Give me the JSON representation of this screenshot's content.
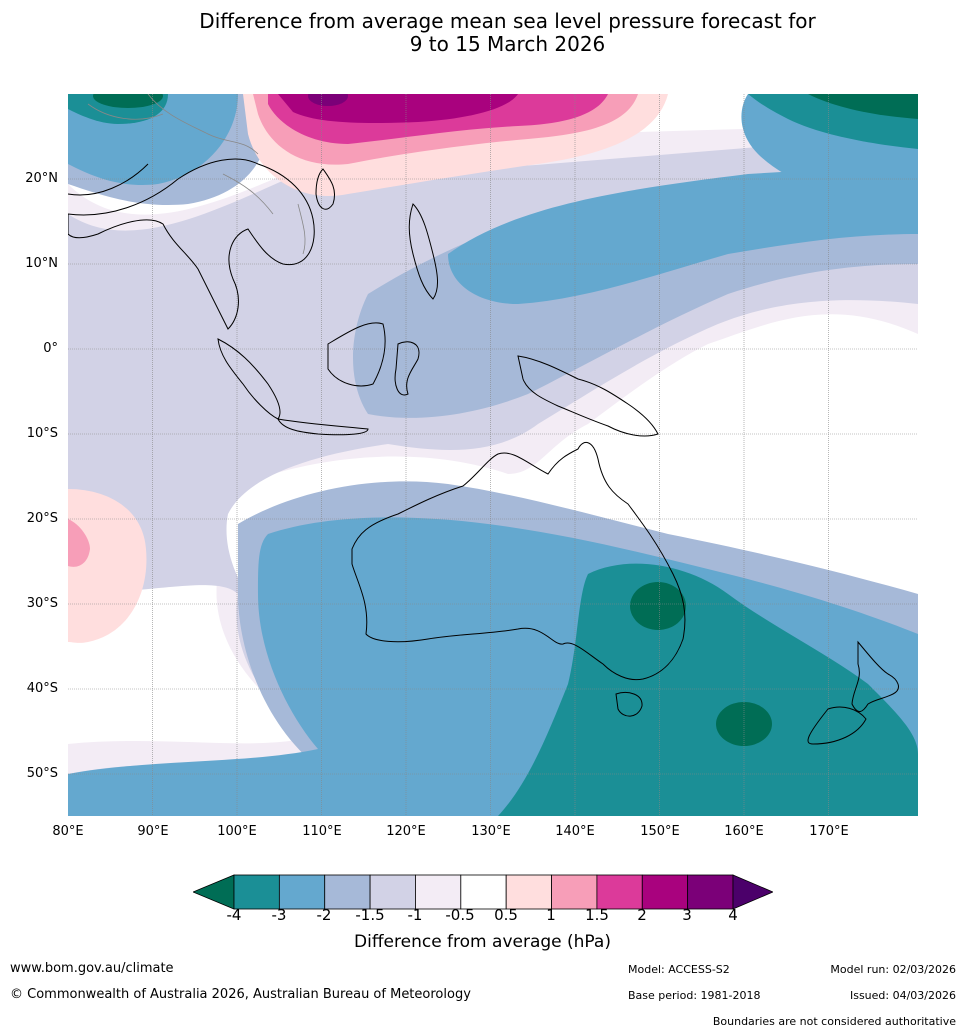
{
  "title_line1": "Difference from average mean sea level pressure forecast for",
  "title_line2": "9 to 15 March 2026",
  "lat_labels": [
    "20°N",
    "10°N",
    "0°",
    "10°S",
    "20°S",
    "30°S",
    "40°S",
    "50°S"
  ],
  "lon_labels": [
    "80°E",
    "90°E",
    "100°E",
    "110°E",
    "120°E",
    "130°E",
    "140°E",
    "150°E",
    "160°E",
    "170°E"
  ],
  "colorbar": {
    "ticks": [
      "-4",
      "-3",
      "-2",
      "-1.5",
      "-1",
      "-0.5",
      "0.5",
      "1",
      "1.5",
      "2",
      "3",
      "4"
    ],
    "colors": [
      "#006d55",
      "#1b8f96",
      "#64a8cf",
      "#a6b9d8",
      "#d2d2e6",
      "#f3ecf5",
      "#ffffff",
      "#ffdede",
      "#f79eb8",
      "#dc3a9a",
      "#a9027e",
      "#7b0078",
      "#4b006a"
    ],
    "label": "Difference from average (hPa)"
  },
  "footer": {
    "website": "www.bom.gov.au/climate",
    "copyright": "© Commonwealth of Australia 2026, Australian Bureau of Meteorology",
    "model": "Model: ACCESS-S2",
    "base_period": "Base period: 1981-2018",
    "model_run": "Model run: 02/03/2026",
    "issued": "Issued: 04/03/2026",
    "disclaimer": "Boundaries are not considered authoritative"
  }
}
